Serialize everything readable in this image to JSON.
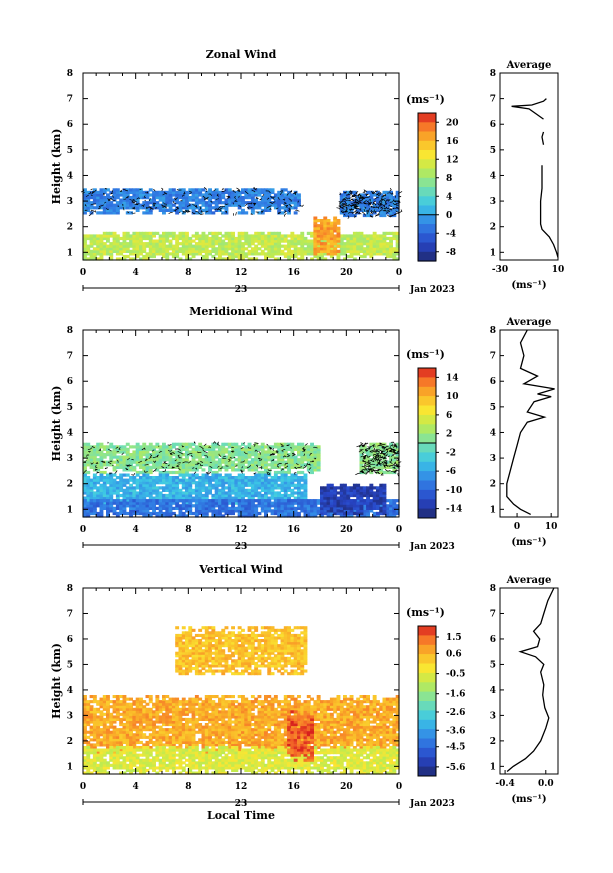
{
  "chart_data": [
    {
      "type": "heatmap",
      "title": "Zonal Wind",
      "ylabel": "Height (km)",
      "xlabel": "",
      "xlim": [
        0,
        24
      ],
      "ylim": [
        0.7,
        8
      ],
      "xticks": [
        "0",
        "4",
        "8",
        "12",
        "16",
        "20",
        "0"
      ],
      "yticks": [
        "1",
        "2",
        "3",
        "4",
        "5",
        "6",
        "7",
        "8"
      ],
      "date_label": "Jan 2023",
      "day_label": "23",
      "colorbar": {
        "unit": "(ms⁻¹)",
        "range": [
          -10,
          22
        ],
        "ticks": [
          "20",
          "16",
          "12",
          "8",
          "4",
          "0",
          "-4",
          "-8"
        ]
      },
      "regions": [
        {
          "name": "upper",
          "t0": 0,
          "t1": 16.5,
          "h0": 2.5,
          "h1": 3.5,
          "value": -2
        },
        {
          "name": "upper-late",
          "t0": 19.5,
          "t1": 24,
          "h0": 2.4,
          "h1": 3.4,
          "value": -2
        },
        {
          "name": "lower",
          "t0": 0,
          "t1": 24,
          "h0": 0.7,
          "h1": 1.8,
          "value": 10
        },
        {
          "name": "jet",
          "t0": 17.5,
          "t1": 19.5,
          "h0": 0.9,
          "h1": 2.4,
          "value": 17
        }
      ],
      "average": {
        "title": "Average",
        "xlabel": "(ms⁻¹)",
        "xlim": [
          -30,
          10
        ],
        "xticks": [
          "-30",
          "10"
        ],
        "profile": [
          {
            "h": 0.8,
            "v": 10
          },
          {
            "h": 1.0,
            "v": 9
          },
          {
            "h": 1.3,
            "v": 7
          },
          {
            "h": 1.6,
            "v": 4
          },
          {
            "h": 1.9,
            "v": -1
          },
          {
            "h": 2.1,
            "v": -2
          },
          {
            "h": 2.5,
            "v": -2
          },
          {
            "h": 3.0,
            "v": -2
          },
          {
            "h": 3.5,
            "v": -1
          },
          {
            "h": 4.0,
            "v": -1
          },
          {
            "h": 4.4,
            "v": -1
          }
        ],
        "profile_upper": [
          {
            "h": 5.2,
            "v": 0
          },
          {
            "h": 5.5,
            "v": -1
          },
          {
            "h": 5.7,
            "v": 0
          }
        ],
        "profile_top": [
          {
            "h": 6.2,
            "v": 0
          },
          {
            "h": 6.4,
            "v": -5
          },
          {
            "h": 6.6,
            "v": -10
          },
          {
            "h": 6.7,
            "v": -22
          },
          {
            "h": 6.75,
            "v": -8
          },
          {
            "h": 6.9,
            "v": 0
          },
          {
            "h": 7.0,
            "v": 2
          }
        ]
      }
    },
    {
      "type": "heatmap",
      "title": "Meridional Wind",
      "ylabel": "Height (km)",
      "xlabel": "",
      "xlim": [
        0,
        24
      ],
      "ylim": [
        0.7,
        8
      ],
      "xticks": [
        "0",
        "4",
        "8",
        "12",
        "16",
        "20",
        "0"
      ],
      "yticks": [
        "1",
        "2",
        "3",
        "4",
        "5",
        "6",
        "7",
        "8"
      ],
      "date_label": "Jan 2023",
      "day_label": "23",
      "colorbar": {
        "unit": "(ms⁻¹)",
        "range": [
          -16,
          16
        ],
        "ticks": [
          "14",
          "10",
          "6",
          "2",
          "-2",
          "-6",
          "-10",
          "-14"
        ]
      },
      "regions": [
        {
          "name": "upper",
          "t0": 0,
          "t1": 18,
          "h0": 2.4,
          "h1": 3.6,
          "value": 1
        },
        {
          "name": "upper-late",
          "t0": 21,
          "t1": 24,
          "h0": 2.4,
          "h1": 3.6,
          "value": 1
        },
        {
          "name": "mid",
          "t0": 0,
          "t1": 17,
          "h0": 1.2,
          "h1": 2.4,
          "value": -5
        },
        {
          "name": "lower",
          "t0": 0,
          "t1": 24,
          "h0": 0.7,
          "h1": 1.4,
          "value": -9
        },
        {
          "name": "strong",
          "t0": 18,
          "t1": 23,
          "h0": 0.8,
          "h1": 2.0,
          "value": -13
        }
      ],
      "average": {
        "title": "Average",
        "xlabel": "(ms⁻¹)",
        "xlim": [
          -5,
          12
        ],
        "xticks": [
          "0",
          "10"
        ],
        "profile": [
          {
            "h": 0.8,
            "v": 4
          },
          {
            "h": 1.0,
            "v": 1
          },
          {
            "h": 1.2,
            "v": -1
          },
          {
            "h": 1.5,
            "v": -3
          },
          {
            "h": 2.0,
            "v": -3
          },
          {
            "h": 2.5,
            "v": -2
          },
          {
            "h": 3.0,
            "v": -1
          },
          {
            "h": 3.5,
            "v": 0
          },
          {
            "h": 4.0,
            "v": 1
          },
          {
            "h": 4.4,
            "v": 3
          },
          {
            "h": 4.6,
            "v": 8
          },
          {
            "h": 4.8,
            "v": 3
          },
          {
            "h": 5.2,
            "v": 5
          },
          {
            "h": 5.4,
            "v": 10
          },
          {
            "h": 5.5,
            "v": 6
          },
          {
            "h": 5.7,
            "v": 11
          },
          {
            "h": 5.9,
            "v": 2
          },
          {
            "h": 6.2,
            "v": 6
          },
          {
            "h": 6.5,
            "v": 1
          },
          {
            "h": 7.0,
            "v": 2
          },
          {
            "h": 7.5,
            "v": 1
          },
          {
            "h": 8.0,
            "v": 3
          }
        ]
      }
    },
    {
      "type": "heatmap",
      "title": "Vertical Wind",
      "ylabel": "Height (km)",
      "xlabel": "Local Time",
      "xlim": [
        0,
        24
      ],
      "ylim": [
        0.7,
        8
      ],
      "xticks": [
        "0",
        "4",
        "8",
        "12",
        "16",
        "20",
        "0"
      ],
      "yticks": [
        "1",
        "2",
        "3",
        "4",
        "5",
        "6",
        "7",
        "8"
      ],
      "date_label": "Jan 2023",
      "day_label": "23",
      "colorbar": {
        "unit": "(ms⁻¹)",
        "range": [
          -6.1,
          2.1
        ],
        "ticks": [
          "1.5",
          "0.6",
          "-0.5",
          "-1.6",
          "-2.6",
          "-3.6",
          "-4.5",
          "-5.6"
        ]
      },
      "regions": [
        {
          "name": "main",
          "t0": 0,
          "t1": 24,
          "h0": 1.5,
          "h1": 3.8,
          "value": 0.7
        },
        {
          "name": "lower",
          "t0": 0,
          "t1": 24,
          "h0": 0.7,
          "h1": 1.8,
          "value": -0.6
        },
        {
          "name": "strong",
          "t0": 15.5,
          "t1": 17.5,
          "h0": 1.2,
          "h1": 3.2,
          "value": 1.6
        },
        {
          "name": "sparse-upper",
          "t0": 7,
          "t1": 17,
          "h0": 4.6,
          "h1": 6.4,
          "value": 0.4
        }
      ],
      "average": {
        "title": "Average",
        "xlabel": "(ms⁻¹)",
        "xlim": [
          -0.45,
          0.12
        ],
        "xticks": [
          "-0.4",
          "0.0"
        ],
        "profile": [
          {
            "h": 0.8,
            "v": -0.38
          },
          {
            "h": 1.0,
            "v": -0.32
          },
          {
            "h": 1.3,
            "v": -0.2
          },
          {
            "h": 1.6,
            "v": -0.12
          },
          {
            "h": 2.0,
            "v": -0.05
          },
          {
            "h": 2.5,
            "v": 0.0
          },
          {
            "h": 2.9,
            "v": 0.03
          },
          {
            "h": 3.3,
            "v": -0.01
          },
          {
            "h": 3.8,
            "v": -0.03
          },
          {
            "h": 4.2,
            "v": -0.02
          },
          {
            "h": 4.7,
            "v": -0.05
          },
          {
            "h": 5.0,
            "v": -0.02
          },
          {
            "h": 5.3,
            "v": -0.1
          },
          {
            "h": 5.5,
            "v": -0.25
          },
          {
            "h": 5.7,
            "v": -0.08
          },
          {
            "h": 6.0,
            "v": -0.06
          },
          {
            "h": 6.3,
            "v": -0.12
          },
          {
            "h": 6.6,
            "v": -0.05
          },
          {
            "h": 7.0,
            "v": -0.02
          },
          {
            "h": 7.5,
            "v": 0.02
          },
          {
            "h": 8.0,
            "v": 0.08
          }
        ]
      }
    }
  ]
}
